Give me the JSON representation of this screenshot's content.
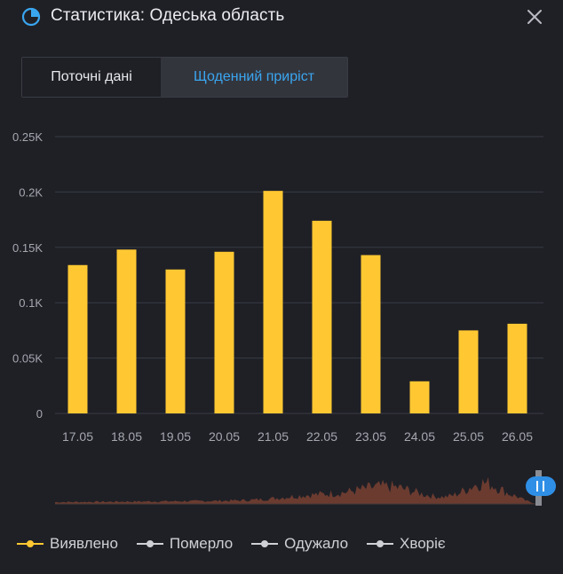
{
  "header": {
    "title": "Статистика: Одеська область",
    "icon": "pie-chart-icon",
    "close_icon": "close-icon"
  },
  "tabs": [
    {
      "label": "Поточні дані",
      "active": false
    },
    {
      "label": "Щоденний приріст",
      "active": true
    }
  ],
  "colors": {
    "accent": "#3aa6f0",
    "bar": "#ffc832",
    "grid": "#393b44",
    "text_muted": "#a6a8b0",
    "navigator_area": "#6b3b30",
    "legend_inactive": "#cfd0d6"
  },
  "chart_data": {
    "type": "bar",
    "categories": [
      "17.05",
      "18.05",
      "19.05",
      "20.05",
      "21.05",
      "22.05",
      "23.05",
      "24.05",
      "25.05",
      "26.05"
    ],
    "series": [
      {
        "name": "Виявлено",
        "values": [
          134,
          148,
          130,
          146,
          201,
          174,
          143,
          29,
          75,
          81
        ]
      }
    ],
    "y_ticks": [
      {
        "value": 0,
        "label": "0"
      },
      {
        "value": 50,
        "label": "0.05K"
      },
      {
        "value": 100,
        "label": "0.1K"
      },
      {
        "value": 150,
        "label": "0.15K"
      },
      {
        "value": 200,
        "label": "0.2K"
      },
      {
        "value": 250,
        "label": "0.25K"
      }
    ],
    "ylim": [
      0,
      250
    ],
    "grid": true,
    "legend_position": "bottom-left"
  },
  "legend": [
    {
      "label": "Виявлено",
      "color": "#ffc832",
      "active": true
    },
    {
      "label": "Померло",
      "color": "#cfd0d6",
      "active": false
    },
    {
      "label": "Одужало",
      "color": "#cfd0d6",
      "active": false
    },
    {
      "label": "Хворіє",
      "color": "#cfd0d6",
      "active": false
    }
  ]
}
